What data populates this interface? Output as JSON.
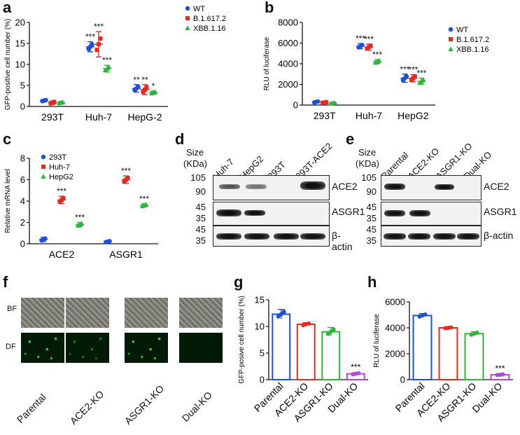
{
  "panel_letters": {
    "a": "a",
    "b": "b",
    "c": "c",
    "d": "d",
    "e": "e",
    "f": "f",
    "g": "g",
    "h": "h"
  },
  "colors": {
    "wt": "#1f4fd6",
    "b16172": "#e02b22",
    "xbb116": "#2fb33a",
    "purple": "#b347d6"
  },
  "chart_data": [
    {
      "id": "a",
      "type": "scatter",
      "ylabel": "GFP-positive cell number  (%)",
      "categories": [
        "293T",
        "Huh-7",
        "HepG-2"
      ],
      "ylim": [
        0,
        20
      ],
      "yticks": [
        0,
        5,
        10,
        15,
        20
      ],
      "legend_position": "top-right",
      "series": [
        {
          "name": "WT",
          "color": "#1f4fd6",
          "marker": "circle",
          "values": [
            1.4,
            14.2,
            4.3
          ],
          "sd": [
            0.3,
            1.2,
            0.9
          ],
          "sig": [
            "",
            "***",
            "**"
          ]
        },
        {
          "name": "B.1.617.2",
          "color": "#e02b22",
          "marker": "square",
          "values": [
            0.9,
            14.8,
            4.0
          ],
          "sd": [
            0.4,
            3.0,
            1.2
          ],
          "sig": [
            "",
            "***",
            "**"
          ]
        },
        {
          "name": "XBB.1.16",
          "color": "#2fb33a",
          "marker": "triangle",
          "values": [
            0.9,
            9.0,
            3.3
          ],
          "sd": [
            0.3,
            0.8,
            0.4
          ],
          "sig": [
            "",
            "***",
            "*"
          ]
        }
      ]
    },
    {
      "id": "b",
      "type": "scatter",
      "ylabel": "RLU of luciferase",
      "categories": [
        "293T",
        "Huh-7",
        "HepG2"
      ],
      "ylim": [
        0,
        8000
      ],
      "yticks": [
        0,
        2000,
        4000,
        6000,
        8000
      ],
      "legend_position": "top-right",
      "series": [
        {
          "name": "WT",
          "color": "#1f4fd6",
          "marker": "circle",
          "values": [
            300,
            5700,
            2600
          ],
          "sd": [
            100,
            250,
            400
          ],
          "sig": [
            "",
            "***",
            "***"
          ]
        },
        {
          "name": "B.1.617.2",
          "color": "#e02b22",
          "marker": "square",
          "values": [
            250,
            5600,
            2600
          ],
          "sd": [
            80,
            300,
            350
          ],
          "sig": [
            "",
            "***",
            "***"
          ]
        },
        {
          "name": "XBB.1.16",
          "color": "#2fb33a",
          "marker": "triangle",
          "values": [
            200,
            4200,
            2300
          ],
          "sd": [
            60,
            200,
            300
          ],
          "sig": [
            "",
            "***",
            "***"
          ]
        }
      ]
    },
    {
      "id": "c",
      "type": "scatter",
      "ylabel": "Relative mRNA level",
      "categories": [
        "ACE2",
        "ASGR1"
      ],
      "ylim": [
        0,
        8
      ],
      "yticks": [
        0,
        2,
        4,
        6,
        8
      ],
      "legend_position": "top-left",
      "series": [
        {
          "name": "293T",
          "color": "#1f4fd6",
          "marker": "circle",
          "values": [
            0.4,
            0.2
          ],
          "sd": [
            0.2,
            0.1
          ],
          "sig": [
            "",
            ""
          ]
        },
        {
          "name": "Huh-7",
          "color": "#e02b22",
          "marker": "square",
          "values": [
            4.1,
            6.0
          ],
          "sd": [
            0.35,
            0.35
          ],
          "sig": [
            "***",
            "***"
          ]
        },
        {
          "name": "HepG2",
          "color": "#2fb33a",
          "marker": "triangle",
          "values": [
            1.8,
            3.6
          ],
          "sd": [
            0.2,
            0.15
          ],
          "sig": [
            "***",
            "***"
          ]
        }
      ]
    },
    {
      "id": "g",
      "type": "bar",
      "ylabel": "GFP-posive cell number  (%)",
      "categories": [
        "Parental",
        "ACE2-KO",
        "ASGR1-KO",
        "Dual-KO"
      ],
      "values": [
        12.3,
        10.4,
        9.0,
        1.1
      ],
      "sd": [
        0.9,
        0.3,
        0.8,
        0.2
      ],
      "colors": [
        "#1f4fd6",
        "#e02b22",
        "#2fb33a",
        "#b347d6"
      ],
      "sig": [
        "",
        "",
        "",
        "***"
      ],
      "ylim": [
        0,
        15
      ],
      "yticks": [
        0,
        5,
        10,
        15
      ]
    },
    {
      "id": "h",
      "type": "bar",
      "ylabel": "RLU of luciferase",
      "categories": [
        "Parental",
        "ACE2-KO",
        "ASGR1-KO",
        "Dual-KO"
      ],
      "values": [
        4950,
        4000,
        3550,
        380
      ],
      "sd": [
        150,
        60,
        150,
        50
      ],
      "colors": [
        "#1f4fd6",
        "#e02b22",
        "#2fb33a",
        "#b347d6"
      ],
      "sig": [
        "",
        "",
        "",
        "***"
      ],
      "ylim": [
        0,
        6000
      ],
      "yticks": [
        0,
        2000,
        4000,
        6000
      ]
    }
  ],
  "blot_d": {
    "size_label": "Size",
    "kda_label": "(KDa)",
    "lanes": [
      "Huh-7",
      "HepG2",
      "293T",
      "293T-ACE2"
    ],
    "mw_ace2": [
      "105",
      "90"
    ],
    "mw_asgr1": [
      "45",
      "35"
    ],
    "mw_actin": [
      "45",
      "35"
    ],
    "proteins": [
      "ACE2",
      "ASGR1",
      "β-actin"
    ]
  },
  "blot_e": {
    "size_label": "Size",
    "kda_label": "(KDa)",
    "lanes": [
      "Parental",
      "ACE2-KO",
      "ASGR1-KO",
      "Dual-KO"
    ],
    "mw_ace2": [
      "105",
      "90"
    ],
    "mw_asgr1": [
      "45",
      "35"
    ],
    "mw_actin": [
      "45",
      "35"
    ],
    "proteins": [
      "ACE2",
      "ASGR1",
      "β-actin"
    ]
  },
  "panel_f": {
    "rows": [
      "BF",
      "DF"
    ],
    "columns": [
      "Parental",
      "ACE2-KO",
      "ASGR1-KO",
      "Dual-KO"
    ]
  }
}
